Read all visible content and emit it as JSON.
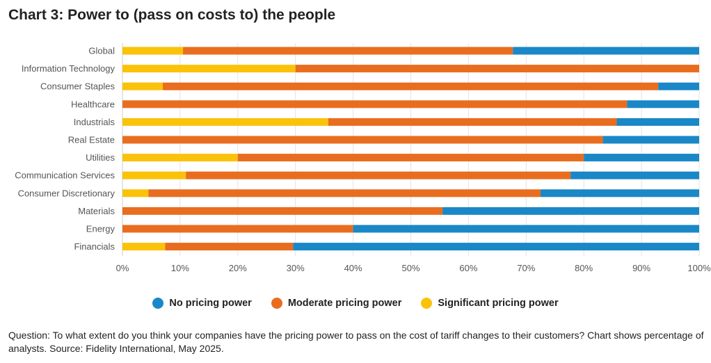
{
  "title": "Chart 3: Power to (pass on costs to) the people",
  "note": "Question: To what extent do you think your companies have the pricing power to pass on the cost of tariff changes to their customers? Chart shows percentage of analysts. Source: Fidelity International, May 2025.",
  "colors": {
    "no_pricing_power": "#1a87c7",
    "moderate_pricing_power": "#e96d1f",
    "significant_pricing_power": "#fbc20a",
    "grid": "#e3e3e3",
    "text": "#555555"
  },
  "legend": [
    {
      "label": "No pricing power",
      "color": "#1a87c7"
    },
    {
      "label": "Moderate pricing power",
      "color": "#e96d1f"
    },
    {
      "label": "Significant pricing power",
      "color": "#fbc20a"
    }
  ],
  "chart_data": {
    "type": "bar",
    "orientation": "horizontal",
    "stacked": true,
    "title": "Chart 3: Power to (pass on costs to) the people",
    "categories": [
      "Global",
      "Information Technology",
      "Consumer Staples",
      "Healthcare",
      "Industrials",
      "Real Estate",
      "Utilities",
      "Communication Services",
      "Consumer Discretionary",
      "Materials",
      "Energy",
      "Financials"
    ],
    "series": [
      {
        "name": "Significant pricing power",
        "color": "#fbc20a",
        "values": [
          10.5,
          30,
          7,
          0,
          35.7,
          0,
          20,
          11,
          4.5,
          0,
          0,
          7.4
        ]
      },
      {
        "name": "Moderate pricing power",
        "color": "#e96d1f",
        "values": [
          57.2,
          70,
          85.9,
          87.5,
          50,
          83.3,
          60,
          66.7,
          68,
          55.5,
          40,
          22.2
        ]
      },
      {
        "name": "No pricing power",
        "color": "#1a87c7",
        "values": [
          32.3,
          0,
          7.1,
          12.5,
          14.3,
          16.7,
          20,
          22.3,
          27.5,
          44.5,
          60,
          70.4
        ]
      }
    ],
    "xlim": [
      0,
      100
    ],
    "xticks": [
      "0%",
      "10%",
      "20%",
      "30%",
      "40%",
      "50%",
      "60%",
      "70%",
      "80%",
      "90%",
      "100%"
    ],
    "grid": true,
    "legend_position": "bottom"
  }
}
